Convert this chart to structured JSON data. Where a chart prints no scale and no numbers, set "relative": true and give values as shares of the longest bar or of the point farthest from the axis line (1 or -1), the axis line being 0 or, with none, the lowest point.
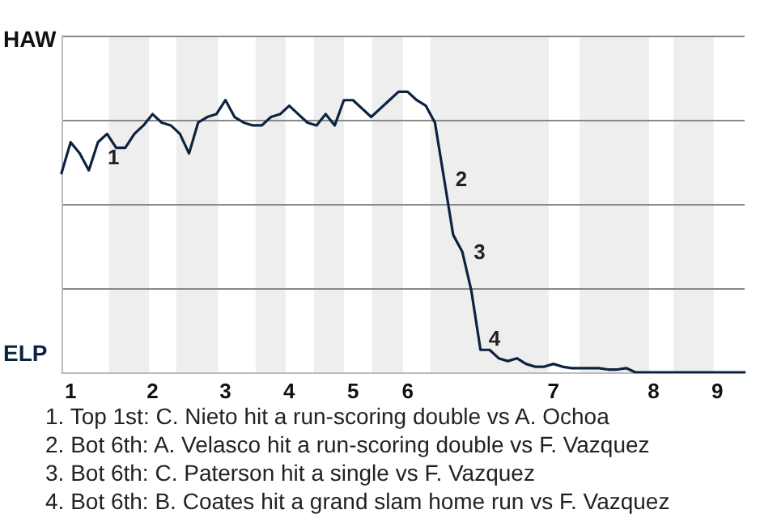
{
  "chart_data": {
    "type": "line",
    "relative": true,
    "categories": [
      null,
      "1",
      null,
      null,
      null,
      null,
      null,
      null,
      null,
      null,
      "2",
      null,
      null,
      null,
      null,
      null,
      null,
      null,
      "3",
      null,
      null,
      null,
      null,
      null,
      null,
      "4",
      null,
      null,
      null,
      null,
      null,
      null,
      "5",
      null,
      null,
      null,
      null,
      null,
      "6",
      null,
      null,
      null,
      null,
      null,
      null,
      null,
      null,
      null,
      null,
      null,
      null,
      null,
      null,
      null,
      "7",
      null,
      null,
      null,
      null,
      null,
      null,
      null,
      null,
      null,
      null,
      "8",
      null,
      null,
      null,
      null,
      null,
      null,
      "9",
      null,
      null,
      null
    ],
    "series": [
      {
        "color": "#0c2340",
        "values": [
          0.71,
          0.82,
          0.78,
          0.72,
          0.82,
          0.85,
          0.8,
          0.8,
          0.85,
          0.88,
          0.92,
          0.89,
          0.88,
          0.85,
          0.78,
          0.89,
          0.91,
          0.92,
          0.97,
          0.91,
          0.89,
          0.88,
          0.88,
          0.91,
          0.92,
          0.95,
          0.92,
          0.89,
          0.88,
          0.92,
          0.88,
          0.97,
          0.97,
          0.94,
          0.91,
          0.94,
          0.97,
          1,
          1,
          0.97,
          0.95,
          0.89,
          0.69,
          0.49,
          0.43,
          0.29,
          0.08,
          0.08,
          0.05,
          0.04,
          0.05,
          0.03,
          0.02,
          0.02,
          0.03,
          0.02,
          0.015,
          0.015,
          0.015,
          0.015,
          0.01,
          0.01,
          0.015,
          0,
          0,
          0,
          0,
          0,
          0,
          0,
          0,
          0,
          0,
          0,
          0,
          0
        ]
      }
    ],
    "grid": "y",
    "annotations": [
      "HAW",
      "ELP",
      "1",
      "2",
      "3",
      "4",
      "1. Top 1st: C. Nieto hit a run-scoring double vs A. Ochoa",
      "2. Bot 6th: A. Velasco hit a run-scoring double vs F. Vazquez",
      "3. Bot 6th: C. Paterson hit a single vs F. Vazquez",
      "4. Bot 6th: B. Coates hit a grand slam home run vs F. Vazquez"
    ]
  }
}
